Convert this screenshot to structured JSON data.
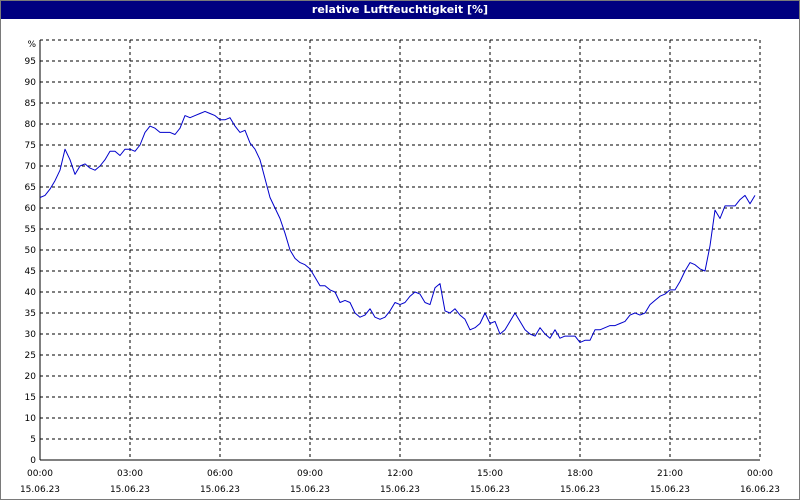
{
  "window": {
    "title": "relative Luftfeuchtigkeit [%]"
  },
  "colors": {
    "title_bar": "#000080",
    "title_text": "#ffffff",
    "line": "#0000cc",
    "grid": "#000000",
    "axes": "#000000"
  },
  "chart_data": {
    "type": "line",
    "title": "relative Luftfeuchtigkeit [%]",
    "ylabel": "%",
    "xlabel": "",
    "ylim": [
      0,
      100
    ],
    "yticks": [
      "0",
      "5",
      "10",
      "15",
      "20",
      "25",
      "30",
      "35",
      "40",
      "45",
      "50",
      "55",
      "60",
      "65",
      "70",
      "75",
      "80",
      "85",
      "90",
      "95"
    ],
    "xlim": [
      "2023-06-15 00:00",
      "2023-06-16 00:00"
    ],
    "xticks": [
      {
        "time": "00:00",
        "date": "15.06.23"
      },
      {
        "time": "03:00",
        "date": "15.06.23"
      },
      {
        "time": "06:00",
        "date": "15.06.23"
      },
      {
        "time": "09:00",
        "date": "15.06.23"
      },
      {
        "time": "12:00",
        "date": "15.06.23"
      },
      {
        "time": "15:00",
        "date": "15.06.23"
      },
      {
        "time": "18:00",
        "date": "15.06.23"
      },
      {
        "time": "21:00",
        "date": "15.06.23"
      },
      {
        "time": "00:00",
        "date": "16.06.23"
      }
    ],
    "grid": true,
    "series": [
      {
        "points": [
          [
            "2023-06-15 00:00",
            62.5
          ],
          [
            "2023-06-15 00:10",
            63
          ],
          [
            "2023-06-15 00:20",
            64.5
          ],
          [
            "2023-06-15 00:30",
            66.5
          ],
          [
            "2023-06-15 00:40",
            69
          ],
          [
            "2023-06-15 00:50",
            74
          ],
          [
            "2023-06-15 01:00",
            71.5
          ],
          [
            "2023-06-15 01:10",
            68
          ],
          [
            "2023-06-15 01:20",
            70
          ],
          [
            "2023-06-15 01:30",
            70.5
          ],
          [
            "2023-06-15 01:40",
            69.5
          ],
          [
            "2023-06-15 01:50",
            69
          ],
          [
            "2023-06-15 02:00",
            70
          ],
          [
            "2023-06-15 02:10",
            71.5
          ],
          [
            "2023-06-15 02:20",
            73.5
          ],
          [
            "2023-06-15 02:30",
            73.5
          ],
          [
            "2023-06-15 02:40",
            72.5
          ],
          [
            "2023-06-15 02:50",
            74
          ],
          [
            "2023-06-15 03:00",
            74
          ],
          [
            "2023-06-15 03:10",
            73.5
          ],
          [
            "2023-06-15 03:20",
            75
          ],
          [
            "2023-06-15 03:30",
            78
          ],
          [
            "2023-06-15 03:40",
            79.5
          ],
          [
            "2023-06-15 03:50",
            79
          ],
          [
            "2023-06-15 04:00",
            78
          ],
          [
            "2023-06-15 04:10",
            78
          ],
          [
            "2023-06-15 04:20",
            78
          ],
          [
            "2023-06-15 04:30",
            77.5
          ],
          [
            "2023-06-15 04:40",
            79
          ],
          [
            "2023-06-15 04:50",
            82
          ],
          [
            "2023-06-15 05:00",
            81.5
          ],
          [
            "2023-06-15 05:10",
            82
          ],
          [
            "2023-06-15 05:20",
            82.5
          ],
          [
            "2023-06-15 05:30",
            83
          ],
          [
            "2023-06-15 05:40",
            82.5
          ],
          [
            "2023-06-15 05:50",
            82
          ],
          [
            "2023-06-15 06:00",
            81
          ],
          [
            "2023-06-15 06:10",
            81
          ],
          [
            "2023-06-15 06:20",
            81.5
          ],
          [
            "2023-06-15 06:30",
            79.5
          ],
          [
            "2023-06-15 06:40",
            78
          ],
          [
            "2023-06-15 06:50",
            78.5
          ],
          [
            "2023-06-15 07:00",
            75.5
          ],
          [
            "2023-06-15 07:10",
            74
          ],
          [
            "2023-06-15 07:20",
            71.5
          ],
          [
            "2023-06-15 07:30",
            67
          ],
          [
            "2023-06-15 07:40",
            62.5
          ],
          [
            "2023-06-15 07:50",
            60
          ],
          [
            "2023-06-15 08:00",
            57.5
          ],
          [
            "2023-06-15 08:10",
            54
          ],
          [
            "2023-06-15 08:20",
            50
          ],
          [
            "2023-06-15 08:30",
            48
          ],
          [
            "2023-06-15 08:40",
            47
          ],
          [
            "2023-06-15 08:50",
            46.5
          ],
          [
            "2023-06-15 09:00",
            45.5
          ],
          [
            "2023-06-15 09:10",
            43.5
          ],
          [
            "2023-06-15 09:20",
            41.5
          ],
          [
            "2023-06-15 09:30",
            41.5
          ],
          [
            "2023-06-15 09:40",
            40.5
          ],
          [
            "2023-06-15 09:50",
            40
          ],
          [
            "2023-06-15 10:00",
            37.5
          ],
          [
            "2023-06-15 10:10",
            38
          ],
          [
            "2023-06-15 10:20",
            37.5
          ],
          [
            "2023-06-15 10:30",
            35
          ],
          [
            "2023-06-15 10:40",
            34
          ],
          [
            "2023-06-15 10:50",
            34.5
          ],
          [
            "2023-06-15 11:00",
            36
          ],
          [
            "2023-06-15 11:10",
            34
          ],
          [
            "2023-06-15 11:20",
            33.5
          ],
          [
            "2023-06-15 11:30",
            34
          ],
          [
            "2023-06-15 11:40",
            35.5
          ],
          [
            "2023-06-15 11:50",
            37.5
          ],
          [
            "2023-06-15 12:00",
            37
          ],
          [
            "2023-06-15 12:10",
            37.5
          ],
          [
            "2023-06-15 12:20",
            39
          ],
          [
            "2023-06-15 12:30",
            40
          ],
          [
            "2023-06-15 12:40",
            39.5
          ],
          [
            "2023-06-15 12:50",
            37.5
          ],
          [
            "2023-06-15 13:00",
            37
          ],
          [
            "2023-06-15 13:10",
            41
          ],
          [
            "2023-06-15 13:20",
            42
          ],
          [
            "2023-06-15 13:30",
            35.5
          ],
          [
            "2023-06-15 13:40",
            35
          ],
          [
            "2023-06-15 13:50",
            36
          ],
          [
            "2023-06-15 14:00",
            34.5
          ],
          [
            "2023-06-15 14:10",
            33.5
          ],
          [
            "2023-06-15 14:20",
            31
          ],
          [
            "2023-06-15 14:30",
            31.5
          ],
          [
            "2023-06-15 14:40",
            32.5
          ],
          [
            "2023-06-15 14:50",
            35
          ],
          [
            "2023-06-15 15:00",
            32.5
          ],
          [
            "2023-06-15 15:10",
            33
          ],
          [
            "2023-06-15 15:20",
            30
          ],
          [
            "2023-06-15 15:30",
            31
          ],
          [
            "2023-06-15 15:40",
            33
          ],
          [
            "2023-06-15 15:50",
            35
          ],
          [
            "2023-06-15 16:00",
            33
          ],
          [
            "2023-06-15 16:10",
            31
          ],
          [
            "2023-06-15 16:20",
            30
          ],
          [
            "2023-06-15 16:30",
            29.5
          ],
          [
            "2023-06-15 16:40",
            31.5
          ],
          [
            "2023-06-15 16:50",
            30
          ],
          [
            "2023-06-15 17:00",
            29
          ],
          [
            "2023-06-15 17:10",
            31
          ],
          [
            "2023-06-15 17:20",
            29
          ],
          [
            "2023-06-15 17:30",
            29.5
          ],
          [
            "2023-06-15 17:40",
            29.5
          ],
          [
            "2023-06-15 17:50",
            29.5
          ],
          [
            "2023-06-15 18:00",
            28
          ],
          [
            "2023-06-15 18:10",
            28.5
          ],
          [
            "2023-06-15 18:20",
            28.5
          ],
          [
            "2023-06-15 18:30",
            31
          ],
          [
            "2023-06-15 18:40",
            31
          ],
          [
            "2023-06-15 18:50",
            31.5
          ],
          [
            "2023-06-15 19:00",
            32
          ],
          [
            "2023-06-15 19:10",
            32
          ],
          [
            "2023-06-15 19:20",
            32.5
          ],
          [
            "2023-06-15 19:30",
            33
          ],
          [
            "2023-06-15 19:40",
            34.5
          ],
          [
            "2023-06-15 19:50",
            35
          ],
          [
            "2023-06-15 20:00",
            34.5
          ],
          [
            "2023-06-15 20:10",
            35
          ],
          [
            "2023-06-15 20:20",
            37
          ],
          [
            "2023-06-15 20:30",
            38
          ],
          [
            "2023-06-15 20:40",
            39
          ],
          [
            "2023-06-15 20:50",
            39.5
          ],
          [
            "2023-06-15 21:00",
            40.5
          ],
          [
            "2023-06-15 21:10",
            40.5
          ],
          [
            "2023-06-15 21:20",
            42.5
          ],
          [
            "2023-06-15 21:30",
            45
          ],
          [
            "2023-06-15 21:40",
            47
          ],
          [
            "2023-06-15 21:50",
            46.5
          ],
          [
            "2023-06-15 22:00",
            45.5
          ],
          [
            "2023-06-15 22:10",
            45
          ],
          [
            "2023-06-15 22:20",
            51
          ],
          [
            "2023-06-15 22:30",
            59.5
          ],
          [
            "2023-06-15 22:40",
            57.5
          ],
          [
            "2023-06-15 22:50",
            60.5
          ],
          [
            "2023-06-15 23:00",
            60.5
          ],
          [
            "2023-06-15 23:10",
            60.5
          ],
          [
            "2023-06-15 23:20",
            62
          ],
          [
            "2023-06-15 23:30",
            63
          ],
          [
            "2023-06-15 23:40",
            61
          ],
          [
            "2023-06-15 23:50",
            63
          ]
        ]
      }
    ]
  }
}
